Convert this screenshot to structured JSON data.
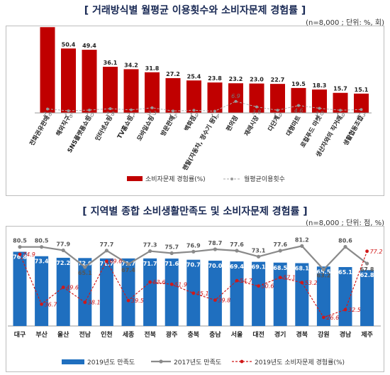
{
  "chart1": {
    "title": "[ 거래방식별 월평균 이용횟수와 소비자문제 경험률 ]",
    "note": "(n=8,000 ; 단위: %, 회)",
    "legend_bar": "소비자문제 경험률(%)",
    "legend_line": "월평균이용횟수"
  },
  "chart2": {
    "title": "[ 지역별 종합 소비생활만족도 및 소비자문제 경험률 ]",
    "note": "(n=8,000 ; 단위: 점, %)",
    "legend_bar": "2019년도 만족도",
    "legend_line1": "2017년도 만족도",
    "legend_line2": "2019년도 소비자문제 경험률(%)"
  },
  "colors": {
    "bar1": "#c00000",
    "bar2": "#1f6fbf",
    "line_gray": "#8a8a8a",
    "line_red": "#d01818",
    "title": "#1a2a55"
  },
  "chart_data": [
    {
      "type": "bar",
      "categories": [
        "전화권유판매",
        "해외직구",
        "SNS플랫폼쇼핑",
        "인터넷쇼핑",
        "TV홈쇼핑",
        "모바일쇼핑",
        "방문판매",
        "백화점",
        "렌탈(자동차, 정수기 등)",
        "편의점",
        "재래시장",
        "다단계",
        "대형마트",
        "로컬푸드 마켓",
        "생산자와의 직거래",
        "생활협동조합"
      ],
      "series": [
        {
          "name": "소비자문제 경험률(%)",
          "type": "bar",
          "values": [
            67.1,
            50.4,
            49.4,
            36.1,
            34.2,
            31.8,
            27.2,
            25.4,
            23.8,
            23.2,
            23.0,
            22.7,
            19.5,
            18.3,
            15.7,
            15.1
          ]
        },
        {
          "name": "월평균이용횟수",
          "type": "line",
          "values": [
            2.6,
            1.6,
            2.0,
            2.8,
            2.1,
            3.3,
            1.5,
            1.9,
            1.4,
            6.9,
            3.8,
            1.9,
            4.6,
            3.0,
            1.9,
            2.3
          ]
        }
      ]
    },
    {
      "type": "bar",
      "categories": [
        "대구",
        "부산",
        "울산",
        "전남",
        "인천",
        "세종",
        "전북",
        "광주",
        "충북",
        "충남",
        "서울",
        "대전",
        "경기",
        "경북",
        "강원",
        "경남",
        "제주"
      ],
      "series": [
        {
          "name": "2019년도 만족도",
          "type": "bar",
          "values": [
            76.8,
            73.4,
            72.2,
            72.0,
            71.7,
            71.7,
            71.7,
            71.6,
            70.7,
            70.0,
            69.4,
            69.1,
            68.5,
            68.1,
            65.5,
            65.1,
            62.8
          ]
        },
        {
          "name": "2017년도 만족도",
          "type": "line",
          "values": [
            80.5,
            80.5,
            77.9,
            65.1,
            77.7,
            67.4,
            77.3,
            75.7,
            76.9,
            78.7,
            77.6,
            73.1,
            77.6,
            81.2,
            63.2,
            80.6,
            67.8
          ]
        },
        {
          "name": "2019년도 소비자문제 경험률(%)",
          "type": "line",
          "values": [
            74.9,
            36.7,
            49.6,
            38.1,
            69.6,
            39.5,
            53.6,
            51.9,
            45.1,
            39.8,
            54.7,
            50.6,
            57.1,
            53.2,
            26.6,
            32.5,
            77.2
          ]
        }
      ]
    }
  ]
}
